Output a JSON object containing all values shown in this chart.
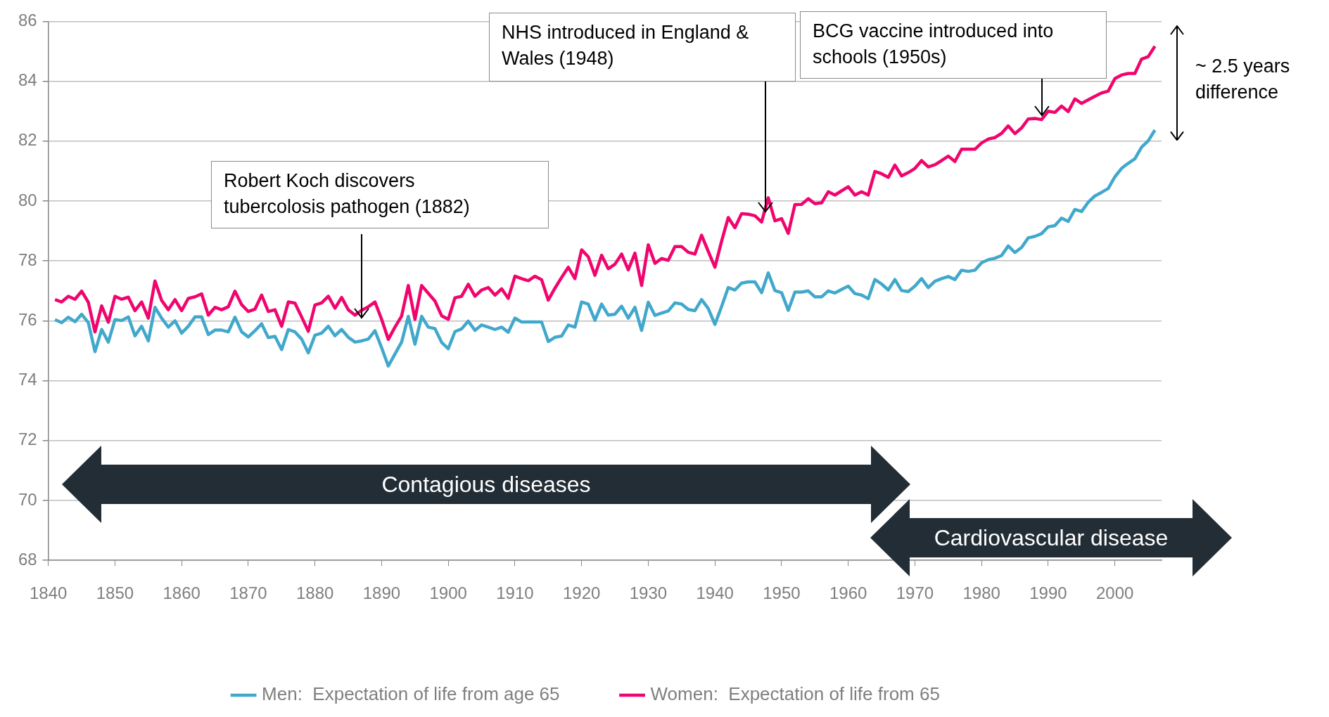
{
  "chart_data": {
    "type": "line",
    "xlim": [
      1840,
      2007
    ],
    "xticks": [
      1840,
      1850,
      1860,
      1870,
      1880,
      1890,
      1900,
      1910,
      1920,
      1930,
      1940,
      1950,
      1960,
      1970,
      1980,
      1990,
      2000
    ],
    "ylim": [
      68,
      86
    ],
    "yticks": [
      68,
      70,
      72,
      74,
      76,
      78,
      80,
      82,
      84,
      86
    ],
    "grid": "y",
    "legend": "bottom",
    "marker": "none",
    "line_style": "solid",
    "x": [
      1841,
      1842,
      1843,
      1844,
      1845,
      1846,
      1847,
      1848,
      1849,
      1850,
      1851,
      1852,
      1853,
      1854,
      1855,
      1856,
      1857,
      1858,
      1859,
      1860,
      1861,
      1862,
      1863,
      1864,
      1865,
      1866,
      1867,
      1868,
      1869,
      1870,
      1871,
      1872,
      1873,
      1874,
      1875,
      1876,
      1877,
      1878,
      1879,
      1880,
      1881,
      1882,
      1883,
      1884,
      1885,
      1886,
      1887,
      1888,
      1889,
      1890,
      1891,
      1892,
      1893,
      1894,
      1895,
      1896,
      1897,
      1898,
      1899,
      1900,
      1901,
      1902,
      1903,
      1904,
      1905,
      1906,
      1907,
      1908,
      1909,
      1910,
      1911,
      1912,
      1913,
      1914,
      1915,
      1916,
      1917,
      1918,
      1919,
      1920,
      1921,
      1922,
      1923,
      1924,
      1925,
      1926,
      1927,
      1928,
      1929,
      1930,
      1931,
      1932,
      1933,
      1934,
      1935,
      1936,
      1937,
      1938,
      1939,
      1940,
      1941,
      1942,
      1943,
      1944,
      1945,
      1946,
      1947,
      1948,
      1949,
      1950,
      1951,
      1952,
      1953,
      1954,
      1955,
      1956,
      1957,
      1958,
      1959,
      1960,
      1961,
      1962,
      1963,
      1964,
      1965,
      1966,
      1967,
      1968,
      1969,
      1970,
      1971,
      1972,
      1973,
      1974,
      1975,
      1976,
      1977,
      1978,
      1979,
      1980,
      1981,
      1982,
      1983,
      1984,
      1985,
      1986,
      1987,
      1988,
      1989,
      1990,
      1991,
      1992,
      1993,
      1994,
      1995,
      1996,
      1997,
      1998,
      1999,
      2000,
      2001,
      2002,
      2003,
      2004,
      2005,
      2006
    ],
    "series": [
      {
        "name": "Men:  Expectation of life from age 65",
        "color": "#41a8cc",
        "values": [
          76.04,
          75.94,
          76.12,
          75.97,
          76.22,
          75.94,
          74.97,
          75.71,
          75.29,
          76.04,
          76.01,
          76.13,
          75.5,
          75.82,
          75.33,
          76.45,
          76.09,
          75.79,
          76.0,
          75.59,
          75.82,
          76.13,
          76.13,
          75.54,
          75.69,
          75.69,
          75.63,
          76.12,
          75.63,
          75.46,
          75.67,
          75.9,
          75.44,
          75.48,
          75.04,
          75.71,
          75.63,
          75.39,
          74.93,
          75.52,
          75.59,
          75.82,
          75.5,
          75.71,
          75.45,
          75.29,
          75.33,
          75.39,
          75.67,
          75.1,
          74.49,
          74.89,
          75.29,
          76.15,
          75.22,
          76.15,
          75.79,
          75.74,
          75.28,
          75.07,
          75.64,
          75.73,
          75.99,
          75.68,
          75.86,
          75.79,
          75.71,
          75.79,
          75.62,
          76.09,
          75.96,
          75.96,
          75.96,
          75.96,
          75.31,
          75.45,
          75.49,
          75.86,
          75.79,
          76.63,
          76.56,
          76.02,
          76.56,
          76.19,
          76.22,
          76.49,
          76.09,
          76.45,
          75.68,
          76.62,
          76.18,
          76.26,
          76.33,
          76.6,
          76.56,
          76.38,
          76.34,
          76.71,
          76.41,
          75.88,
          76.48,
          77.11,
          77.03,
          77.26,
          77.3,
          77.3,
          76.94,
          77.6,
          77.01,
          76.94,
          76.35,
          76.96,
          76.96,
          77.0,
          76.8,
          76.8,
          77.0,
          76.93,
          77.05,
          77.16,
          76.91,
          76.86,
          76.74,
          77.38,
          77.23,
          77.03,
          77.38,
          77.01,
          76.98,
          77.16,
          77.41,
          77.11,
          77.32,
          77.41,
          77.48,
          77.38,
          77.69,
          77.65,
          77.69,
          77.94,
          78.04,
          78.09,
          78.18,
          78.5,
          78.28,
          78.45,
          78.77,
          78.82,
          78.91,
          79.14,
          79.18,
          79.43,
          79.32,
          79.72,
          79.65,
          79.96,
          80.17,
          80.29,
          80.42,
          80.81,
          81.09,
          81.26,
          81.41,
          81.8,
          82.01,
          82.37
        ]
      },
      {
        "name": "Women:  Expectation of life from 65",
        "color": "#f0056e",
        "values": [
          76.71,
          76.63,
          76.82,
          76.72,
          76.99,
          76.62,
          75.63,
          76.5,
          75.95,
          76.82,
          76.72,
          76.79,
          76.34,
          76.63,
          76.09,
          77.33,
          76.68,
          76.37,
          76.71,
          76.34,
          76.75,
          76.8,
          76.9,
          76.19,
          76.45,
          76.37,
          76.47,
          76.99,
          76.54,
          76.31,
          76.39,
          76.86,
          76.31,
          76.37,
          75.82,
          76.63,
          76.59,
          76.13,
          75.65,
          76.53,
          76.6,
          76.82,
          76.42,
          76.78,
          76.37,
          76.19,
          76.35,
          76.47,
          76.63,
          76.05,
          75.38,
          75.79,
          76.16,
          77.18,
          76.05,
          77.18,
          76.92,
          76.66,
          76.17,
          76.05,
          76.77,
          76.82,
          77.22,
          76.82,
          77.03,
          77.11,
          76.86,
          77.07,
          76.75,
          77.49,
          77.41,
          77.34,
          77.49,
          77.37,
          76.69,
          77.09,
          77.45,
          77.79,
          77.41,
          78.37,
          78.14,
          77.52,
          78.19,
          77.74,
          77.89,
          78.23,
          77.7,
          78.26,
          77.18,
          78.54,
          77.92,
          78.08,
          78.02,
          78.48,
          78.48,
          78.29,
          78.23,
          78.86,
          78.32,
          77.79,
          78.66,
          79.45,
          79.11,
          79.58,
          79.56,
          79.51,
          79.3,
          80.11,
          79.34,
          79.41,
          78.92,
          79.88,
          79.89,
          80.08,
          79.91,
          79.94,
          80.31,
          80.2,
          80.34,
          80.48,
          80.2,
          80.31,
          80.2,
          80.99,
          80.91,
          80.79,
          81.2,
          80.84,
          80.95,
          81.09,
          81.35,
          81.14,
          81.21,
          81.35,
          81.5,
          81.32,
          81.73,
          81.73,
          81.73,
          81.94,
          82.07,
          82.12,
          82.26,
          82.51,
          82.25,
          82.44,
          82.74,
          82.76,
          82.72,
          83.0,
          82.96,
          83.17,
          82.99,
          83.41,
          83.26,
          83.38,
          83.5,
          83.61,
          83.67,
          84.09,
          84.21,
          84.26,
          84.26,
          84.74,
          84.82,
          85.17
        ]
      }
    ],
    "annotations": [
      "Robert Koch discovers tubercolosis pathogen (1882)",
      "NHS introduced in England & Wales (1948)",
      "BCG vaccine introduced into schools (1950s)",
      "Contagious diseases",
      "Cardiovascular disease",
      "~ 2.5 years difference"
    ]
  }
}
